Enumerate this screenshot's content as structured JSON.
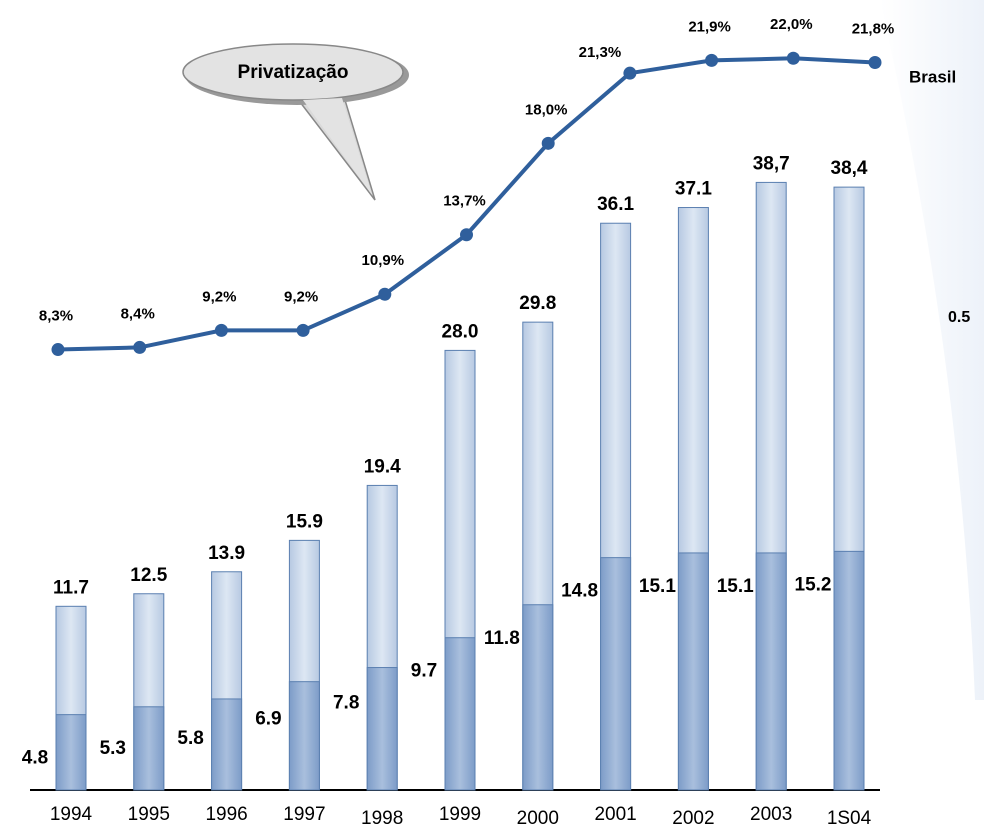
{
  "chart_data": {
    "type": "bar",
    "categories": [
      "1994",
      "1995",
      "1996",
      "1997",
      "1998",
      "1999",
      "2000",
      "2001",
      "2002",
      "2003",
      "1S04"
    ],
    "series": [
      {
        "values": [
          11.7,
          12.5,
          13.9,
          15.9,
          19.4,
          28.0,
          29.8,
          36.1,
          37.1,
          38.7,
          38.4
        ],
        "value_labels": [
          "11.7",
          "12.5",
          "13.9",
          "15.9",
          "19.4",
          "28.0",
          "29.8",
          "36.1",
          "37.1",
          "38,7",
          "38,4"
        ],
        "color": "#c9d7ea"
      },
      {
        "values": [
          4.8,
          5.3,
          5.8,
          6.9,
          7.8,
          9.7,
          11.8,
          14.8,
          15.1,
          15.1,
          15.2
        ],
        "color": "#8eaad0"
      },
      {
        "name": "Brasil",
        "type": "line",
        "axis": "y2",
        "color": "#2f5f9c",
        "values": [
          8.3,
          8.4,
          9.2,
          9.2,
          10.9,
          13.7,
          18.0,
          21.3,
          21.9,
          22.0,
          21.8
        ],
        "value_labels": [
          "8,3%",
          "8,4%",
          "9,2%",
          "9,2%",
          "10,9%",
          "13,7%",
          "18,0%",
          "21,3%",
          "21,9%",
          "22,0%",
          "21,8%"
        ]
      }
    ],
    "ylim": [
      0,
      45
    ],
    "y2lim": [
      0,
      25
    ],
    "annotations": [
      "Privatização",
      "0.5"
    ]
  }
}
